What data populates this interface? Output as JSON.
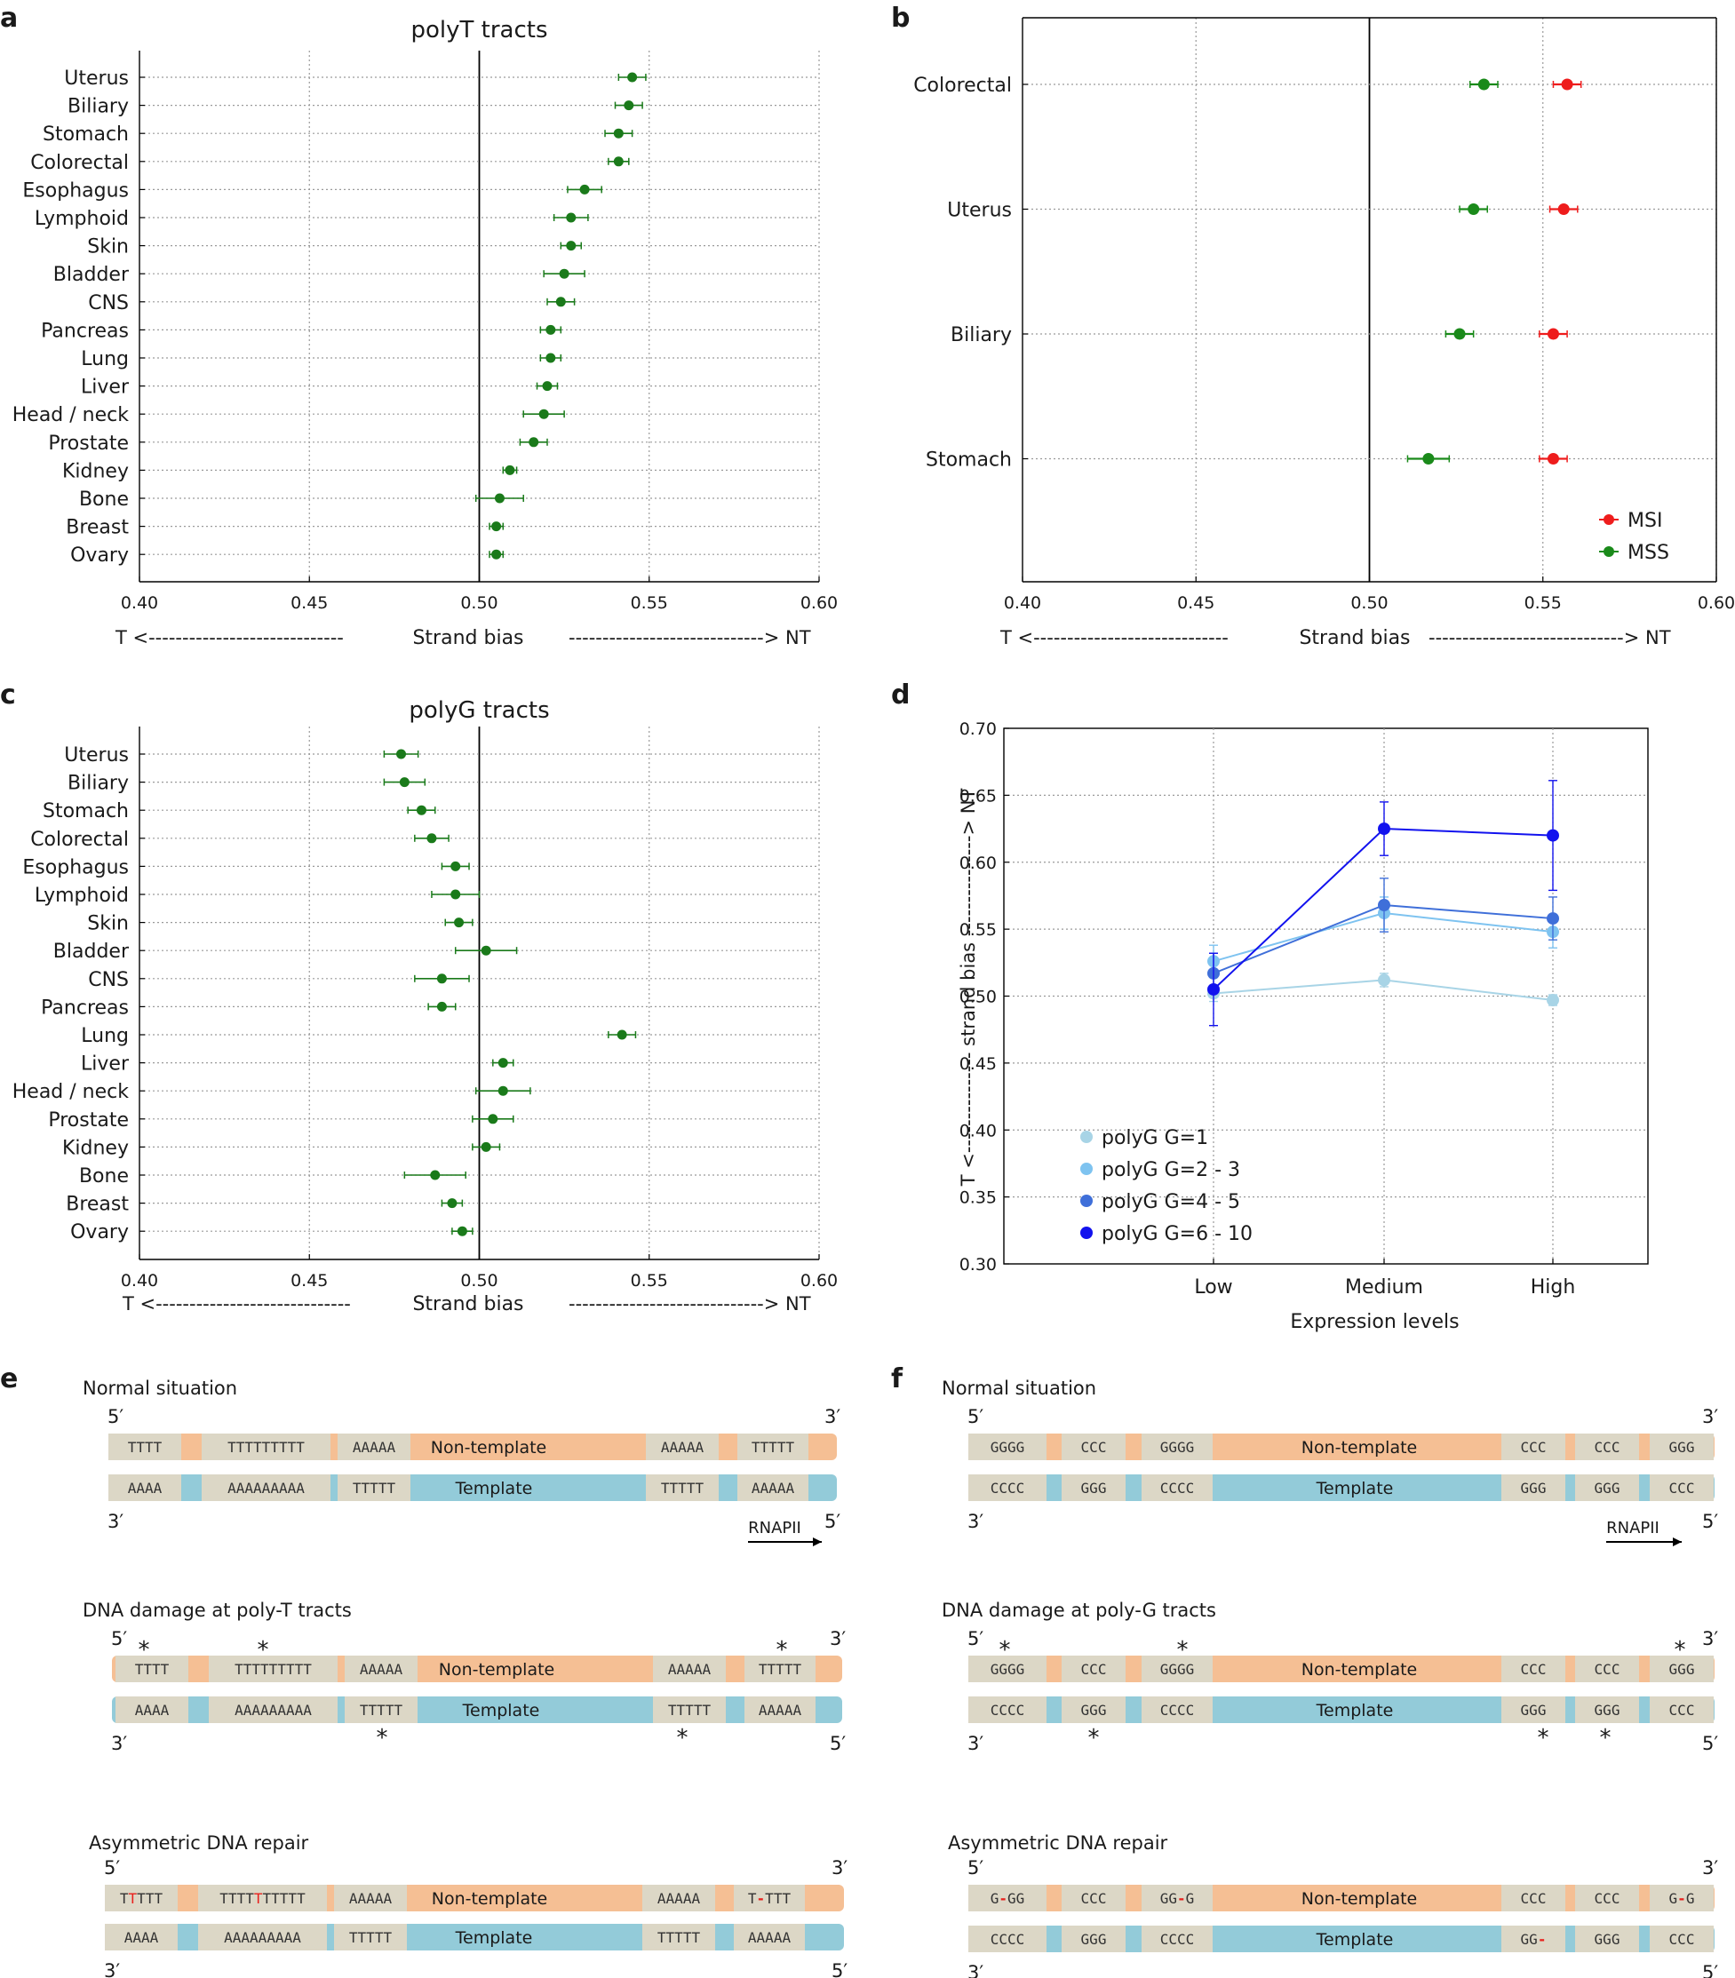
{
  "panel_labels": [
    "a",
    "b",
    "c",
    "d",
    "e",
    "f"
  ],
  "chart_data": [
    {
      "panel": "a",
      "type": "scatter",
      "title": "polyT tracts",
      "xlabel": "Strand bias",
      "xleft": "T <----------------------------",
      "xright": "-----------------------------> NT",
      "xlim": [
        0.4,
        0.6
      ],
      "xticks": [
        "0.40",
        "0.45",
        "0.50",
        "0.55",
        "0.60"
      ],
      "reference_line": 0.5,
      "color": "#1a7a1a",
      "categories": [
        "Uterus",
        "Biliary",
        "Stomach",
        "Colorectal",
        "Esophagus",
        "Lymphoid",
        "Skin",
        "Bladder",
        "CNS",
        "Pancreas",
        "Lung",
        "Liver",
        "Head / neck",
        "Prostate",
        "Kidney",
        "Bone",
        "Breast",
        "Ovary"
      ],
      "values": [
        0.545,
        0.544,
        0.541,
        0.541,
        0.531,
        0.527,
        0.527,
        0.525,
        0.524,
        0.521,
        0.521,
        0.52,
        0.519,
        0.516,
        0.509,
        0.506,
        0.505,
        0.505
      ],
      "errors": [
        0.004,
        0.004,
        0.004,
        0.003,
        0.005,
        0.005,
        0.003,
        0.006,
        0.004,
        0.003,
        0.003,
        0.003,
        0.006,
        0.004,
        0.002,
        0.007,
        0.002,
        0.002
      ]
    },
    {
      "panel": "b",
      "type": "scatter",
      "title": "",
      "xlabel": "Strand bias",
      "xleft": "T <----------------------------",
      "xright": "-----------------------------> NT",
      "xlim": [
        0.4,
        0.6
      ],
      "xticks": [
        "0.40",
        "0.45",
        "0.50",
        "0.55",
        "0.60"
      ],
      "reference_line": 0.5,
      "categories": [
        "Colorectal",
        "Uterus",
        "Biliary",
        "Stomach"
      ],
      "series": [
        {
          "name": "MSI",
          "color": "#ee1c1c",
          "values": [
            0.557,
            0.556,
            0.553,
            0.553
          ],
          "errors": [
            0.004,
            0.004,
            0.004,
            0.004
          ]
        },
        {
          "name": "MSS",
          "color": "#1a8a1a",
          "values": [
            0.533,
            0.53,
            0.526,
            0.517
          ],
          "errors": [
            0.004,
            0.004,
            0.004,
            0.006
          ]
        }
      ],
      "legend": "bottom-right"
    },
    {
      "panel": "c",
      "type": "scatter",
      "title": "polyG tracts",
      "xlabel": "Strand bias",
      "xleft": "T <----------------------------",
      "xright": "-----------------------------> NT",
      "xlim": [
        0.4,
        0.6
      ],
      "xticks": [
        "0.40",
        "0.45",
        "0.50",
        "0.55",
        "0.60"
      ],
      "reference_line": 0.5,
      "color": "#1a7a1a",
      "categories": [
        "Uterus",
        "Biliary",
        "Stomach",
        "Colorectal",
        "Esophagus",
        "Lymphoid",
        "Skin",
        "Bladder",
        "CNS",
        "Pancreas",
        "Lung",
        "Liver",
        "Head / neck",
        "Prostate",
        "Kidney",
        "Bone",
        "Breast",
        "Ovary"
      ],
      "values": [
        0.477,
        0.478,
        0.483,
        0.486,
        0.493,
        0.493,
        0.494,
        0.502,
        0.489,
        0.489,
        0.542,
        0.507,
        0.507,
        0.504,
        0.502,
        0.487,
        0.492,
        0.495
      ],
      "errors": [
        0.005,
        0.006,
        0.004,
        0.005,
        0.004,
        0.007,
        0.004,
        0.009,
        0.008,
        0.004,
        0.004,
        0.003,
        0.008,
        0.006,
        0.004,
        0.009,
        0.003,
        0.003
      ]
    },
    {
      "panel": "d",
      "type": "line",
      "xlabel": "Expression levels",
      "ylabel": "T <--------------- strand bias ---------------> NT",
      "categories": [
        "Low",
        "Medium",
        "High"
      ],
      "ylim": [
        0.3,
        0.7
      ],
      "yticks": [
        "0.30",
        "0.35",
        "0.40",
        "0.45",
        "0.50",
        "0.55",
        "0.60",
        "0.65",
        "0.70"
      ],
      "series": [
        {
          "name": "polyG G=1",
          "color": "#a8d4e6",
          "values": [
            0.502,
            0.512,
            0.497
          ],
          "errors": [
            0.006,
            0.005,
            0.004
          ]
        },
        {
          "name": "polyG G=2 - 3",
          "color": "#7ec3f0",
          "values": [
            0.526,
            0.562,
            0.548
          ],
          "errors": [
            0.012,
            0.012,
            0.012
          ]
        },
        {
          "name": "polyG G=4 - 5",
          "color": "#3f6fd9",
          "values": [
            0.517,
            0.568,
            0.558
          ],
          "errors": [
            0.015,
            0.02,
            0.016
          ]
        },
        {
          "name": "polyG G=6 - 10",
          "color": "#1212ee",
          "values": [
            0.505,
            0.625,
            0.62
          ],
          "errors": [
            0.027,
            0.02,
            0.041
          ]
        }
      ],
      "legend": "bottom-left"
    }
  ],
  "diagrams": {
    "e": {
      "rows": [
        {
          "title": "Normal situation",
          "nt_seqs": [
            "TTTT",
            "TTTTTTTTT",
            "AAAAA",
            "AAAAA",
            "TTTTT"
          ],
          "t_seqs": [
            "AAAA",
            "AAAAAAAAA",
            "TTTTT",
            "TTTTT",
            "AAAAA"
          ]
        },
        {
          "title": "DNA damage at poly-T tracts",
          "nt_seqs": [
            "TTTT",
            "TTTTTTTTT",
            "AAAAA",
            "AAAAA",
            "TTTTT"
          ],
          "t_seqs": [
            "AAAA",
            "AAAAAAAAA",
            "TTTTT",
            "TTTTT",
            "AAAAA"
          ]
        },
        {
          "title": "Asymmetric DNA repair",
          "nt_seqs": [
            "TTTTT",
            "TTTTTTTTTT",
            "AAAAA",
            "AAAAA",
            "T-TTT"
          ],
          "t_seqs": [
            "AAAA",
            "AAAAAAAAA",
            "TTTTT",
            "TTTTT",
            "AAAAA"
          ]
        }
      ]
    },
    "f": {
      "rows": [
        {
          "title": "Normal situation",
          "nt_seqs": [
            "GGGG",
            "CCC",
            "GGGG",
            "CCC",
            "CCC",
            "GGG"
          ],
          "t_seqs": [
            "CCCC",
            "GGG",
            "CCCC",
            "GGG",
            "GGG",
            "CCC"
          ]
        },
        {
          "title": "DNA damage at poly-G tracts",
          "nt_seqs": [
            "GGGG",
            "CCC",
            "GGGG",
            "CCC",
            "CCC",
            "GGG"
          ],
          "t_seqs": [
            "CCCC",
            "GGG",
            "CCCC",
            "GGG",
            "GGG",
            "CCC"
          ]
        },
        {
          "title": "Asymmetric DNA repair",
          "nt_seqs": [
            "G-GG",
            "CCC",
            "GG-G",
            "CCC",
            "CCC",
            "G-G"
          ],
          "t_seqs": [
            "CCCC",
            "GGG",
            "CCCC",
            "GG-",
            "GGG",
            "CCC"
          ]
        }
      ]
    },
    "strand_labels": {
      "non_template": "Non-template",
      "template": "Template",
      "five": "5′",
      "three": "3′",
      "polymerase": "RNAPII",
      "damage_mark": "*"
    },
    "colors": {
      "non_template": "#f5bf94",
      "template": "#93cbd9",
      "segment": "#dcd7c6",
      "highlight": "#e8201c"
    }
  }
}
